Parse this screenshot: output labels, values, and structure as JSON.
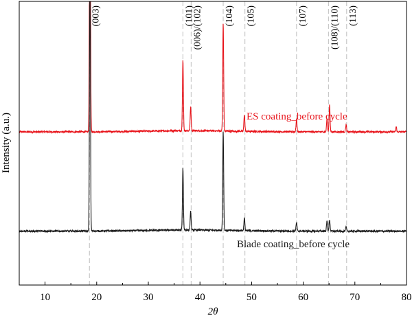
{
  "chart_data": {
    "type": "line",
    "xlabel": "2θ",
    "ylabel": "Intensity (a.u.)",
    "xlim": [
      5,
      80
    ],
    "xticks": [
      10,
      20,
      30,
      40,
      50,
      60,
      70,
      80
    ],
    "yticks_shown": false,
    "grid": false,
    "legend": "inline labels",
    "reference_lines": [
      {
        "x": 18.6,
        "label": "(003)"
      },
      {
        "x": 36.7,
        "label": "(101)"
      },
      {
        "x": 38.3,
        "label": "(006)/(102)"
      },
      {
        "x": 44.5,
        "label": "(104)"
      },
      {
        "x": 48.7,
        "label": "(105)"
      },
      {
        "x": 58.7,
        "label": "(107)"
      },
      {
        "x": 64.9,
        "label": "(108)/(110)"
      },
      {
        "x": 68.4,
        "label": "(113)"
      }
    ],
    "series": [
      {
        "name": "ES coating_before cycle",
        "color": "#e8141b",
        "baseline": 0.54,
        "peaks": [
          [
            18.7,
            1.2
          ],
          [
            36.7,
            0.25
          ],
          [
            38.2,
            0.085
          ],
          [
            44.5,
            0.38
          ],
          [
            48.6,
            0.06
          ],
          [
            58.7,
            0.045
          ],
          [
            64.6,
            0.045
          ],
          [
            65.1,
            0.095
          ],
          [
            68.3,
            0.025
          ],
          [
            78.0,
            0.018
          ]
        ]
      },
      {
        "name": "Blade coating_before cycle",
        "color": "#1a1a1a",
        "baseline": 0.19,
        "peaks": [
          [
            18.7,
            0.95
          ],
          [
            36.7,
            0.22
          ],
          [
            38.2,
            0.065
          ],
          [
            44.5,
            0.35
          ],
          [
            48.6,
            0.045
          ],
          [
            58.7,
            0.03
          ],
          [
            64.6,
            0.035
          ],
          [
            65.1,
            0.04
          ],
          [
            68.3,
            0.015
          ]
        ]
      }
    ]
  }
}
